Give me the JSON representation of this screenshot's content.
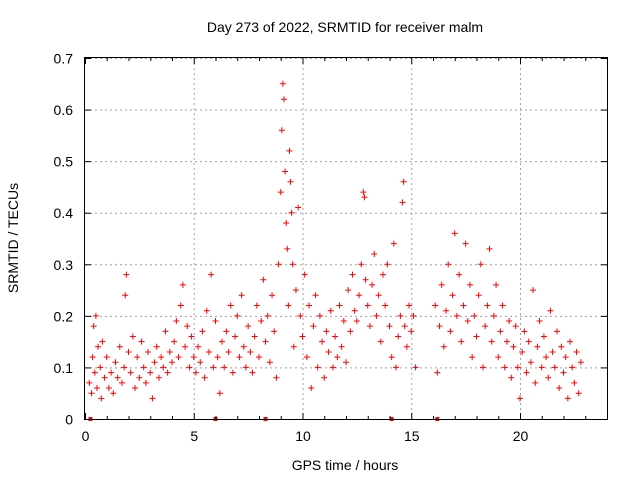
{
  "chart_data": {
    "type": "scatter",
    "title": "Day 273 of 2022, SRMTID for receiver malm",
    "xlabel": "GPS time / hours",
    "ylabel": "SRMTID / TECUs",
    "xlim": [
      0,
      24
    ],
    "ylim": [
      0,
      0.7
    ],
    "xticks": [
      0,
      5,
      10,
      15,
      20
    ],
    "xtick_labels": [
      "0",
      "5",
      "10",
      "15",
      "20"
    ],
    "yticks": [
      0,
      0.1,
      0.2,
      0.3,
      0.4,
      0.5,
      0.6,
      0.7
    ],
    "ytick_labels": [
      "0",
      "0.1",
      "0.2",
      "0.3",
      "0.4",
      "0.5",
      "0.6",
      "0.7"
    ],
    "grid": true,
    "marker": "+",
    "color": "#ff0000",
    "series": [
      {
        "name": "SRMTID",
        "points": [
          [
            0.2,
            0.07
          ],
          [
            0.3,
            0.05
          ],
          [
            0.35,
            0.12
          ],
          [
            0.4,
            0.18
          ],
          [
            0.45,
            0.09
          ],
          [
            0.5,
            0.2
          ],
          [
            0.55,
            0.06
          ],
          [
            0.6,
            0.14
          ],
          [
            0.7,
            0.1
          ],
          [
            0.75,
            0.04
          ],
          [
            0.8,
            0.15
          ],
          [
            0.9,
            0.08
          ],
          [
            1.0,
            0.12
          ],
          [
            1.1,
            0.06
          ],
          [
            1.2,
            0.09
          ],
          [
            1.3,
            0.05
          ],
          [
            1.4,
            0.11
          ],
          [
            1.5,
            0.08
          ],
          [
            1.6,
            0.14
          ],
          [
            1.7,
            0.07
          ],
          [
            1.8,
            0.1
          ],
          [
            1.85,
            0.24
          ],
          [
            1.9,
            0.28
          ],
          [
            2.0,
            0.13
          ],
          [
            2.1,
            0.09
          ],
          [
            2.2,
            0.16
          ],
          [
            2.3,
            0.06
          ],
          [
            2.4,
            0.12
          ],
          [
            2.5,
            0.08
          ],
          [
            2.6,
            0.15
          ],
          [
            2.7,
            0.1
          ],
          [
            2.8,
            0.07
          ],
          [
            2.9,
            0.13
          ],
          [
            3.0,
            0.09
          ],
          [
            3.1,
            0.04
          ],
          [
            3.2,
            0.11
          ],
          [
            3.3,
            0.14
          ],
          [
            3.4,
            0.08
          ],
          [
            3.5,
            0.12
          ],
          [
            3.6,
            0.1
          ],
          [
            3.7,
            0.17
          ],
          [
            3.8,
            0.09
          ],
          [
            3.9,
            0.13
          ],
          [
            4.0,
            0.11
          ],
          [
            4.1,
            0.15
          ],
          [
            4.2,
            0.19
          ],
          [
            4.3,
            0.12
          ],
          [
            4.4,
            0.22
          ],
          [
            4.5,
            0.26
          ],
          [
            4.6,
            0.14
          ],
          [
            4.7,
            0.18
          ],
          [
            4.8,
            0.1
          ],
          [
            4.9,
            0.16
          ],
          [
            5.0,
            0.12
          ],
          [
            5.1,
            0.09
          ],
          [
            5.2,
            0.14
          ],
          [
            5.3,
            0.11
          ],
          [
            5.4,
            0.17
          ],
          [
            5.5,
            0.08
          ],
          [
            5.6,
            0.21
          ],
          [
            5.7,
            0.13
          ],
          [
            5.8,
            0.28
          ],
          [
            5.9,
            0.1
          ],
          [
            6.0,
            0.19
          ],
          [
            6.1,
            0.12
          ],
          [
            6.2,
            0.05
          ],
          [
            6.3,
            0.15
          ],
          [
            6.4,
            0.1
          ],
          [
            6.5,
            0.17
          ],
          [
            6.6,
            0.13
          ],
          [
            6.7,
            0.22
          ],
          [
            6.8,
            0.09
          ],
          [
            6.9,
            0.16
          ],
          [
            7.0,
            0.2
          ],
          [
            7.1,
            0.12
          ],
          [
            7.2,
            0.24
          ],
          [
            7.3,
            0.14
          ],
          [
            7.4,
            0.1
          ],
          [
            7.5,
            0.18
          ],
          [
            7.6,
            0.13
          ],
          [
            7.7,
            0.09
          ],
          [
            7.8,
            0.16
          ],
          [
            7.9,
            0.22
          ],
          [
            8.0,
            0.12
          ],
          [
            8.1,
            0.19
          ],
          [
            8.2,
            0.27
          ],
          [
            8.3,
            0.15
          ],
          [
            8.4,
            0.2
          ],
          [
            8.5,
            0.11
          ],
          [
            8.6,
            0.24
          ],
          [
            8.7,
            0.17
          ],
          [
            8.8,
            0.08
          ],
          [
            8.9,
            0.3
          ],
          [
            9.0,
            0.44
          ],
          [
            9.05,
            0.56
          ],
          [
            9.1,
            0.65
          ],
          [
            9.15,
            0.62
          ],
          [
            9.2,
            0.48
          ],
          [
            9.25,
            0.38
          ],
          [
            9.3,
            0.33
          ],
          [
            9.35,
            0.22
          ],
          [
            9.4,
            0.52
          ],
          [
            9.45,
            0.46
          ],
          [
            9.5,
            0.4
          ],
          [
            9.55,
            0.3
          ],
          [
            9.6,
            0.14
          ],
          [
            9.7,
            0.25
          ],
          [
            9.8,
            0.41
          ],
          [
            9.9,
            0.2
          ],
          [
            10.0,
            0.16
          ],
          [
            10.1,
            0.28
          ],
          [
            10.2,
            0.12
          ],
          [
            10.3,
            0.22
          ],
          [
            10.4,
            0.06
          ],
          [
            10.5,
            0.18
          ],
          [
            10.6,
            0.24
          ],
          [
            10.7,
            0.1
          ],
          [
            10.8,
            0.2
          ],
          [
            10.9,
            0.15
          ],
          [
            11.0,
            0.08
          ],
          [
            11.1,
            0.17
          ],
          [
            11.2,
            0.13
          ],
          [
            11.3,
            0.21
          ],
          [
            11.4,
            0.1
          ],
          [
            11.5,
            0.16
          ],
          [
            11.6,
            0.12
          ],
          [
            11.7,
            0.22
          ],
          [
            11.8,
            0.14
          ],
          [
            11.9,
            0.19
          ],
          [
            12.0,
            0.11
          ],
          [
            12.1,
            0.25
          ],
          [
            12.2,
            0.17
          ],
          [
            12.3,
            0.28
          ],
          [
            12.4,
            0.21
          ],
          [
            12.5,
            0.19
          ],
          [
            12.6,
            0.24
          ],
          [
            12.7,
            0.3
          ],
          [
            12.8,
            0.44
          ],
          [
            12.85,
            0.43
          ],
          [
            12.9,
            0.27
          ],
          [
            13.0,
            0.22
          ],
          [
            13.1,
            0.18
          ],
          [
            13.2,
            0.26
          ],
          [
            13.3,
            0.32
          ],
          [
            13.4,
            0.2
          ],
          [
            13.5,
            0.24
          ],
          [
            13.6,
            0.15
          ],
          [
            13.7,
            0.28
          ],
          [
            13.8,
            0.22
          ],
          [
            13.9,
            0.3
          ],
          [
            14.0,
            0.18
          ],
          [
            14.1,
            0.12
          ],
          [
            14.2,
            0.34
          ],
          [
            14.3,
            0.1
          ],
          [
            14.4,
            0.16
          ],
          [
            14.5,
            0.2
          ],
          [
            14.6,
            0.42
          ],
          [
            14.65,
            0.46
          ],
          [
            14.7,
            0.18
          ],
          [
            14.8,
            0.14
          ],
          [
            14.9,
            0.22
          ],
          [
            15.0,
            0.17
          ],
          [
            15.1,
            0.2
          ],
          [
            15.2,
            0.1
          ],
          [
            16.1,
            0.22
          ],
          [
            16.2,
            0.09
          ],
          [
            16.3,
            0.18
          ],
          [
            16.4,
            0.26
          ],
          [
            16.5,
            0.14
          ],
          [
            16.6,
            0.21
          ],
          [
            16.7,
            0.3
          ],
          [
            16.8,
            0.17
          ],
          [
            16.9,
            0.24
          ],
          [
            17.0,
            0.36
          ],
          [
            17.1,
            0.2
          ],
          [
            17.2,
            0.28
          ],
          [
            17.3,
            0.15
          ],
          [
            17.4,
            0.22
          ],
          [
            17.5,
            0.34
          ],
          [
            17.6,
            0.19
          ],
          [
            17.7,
            0.26
          ],
          [
            17.8,
            0.12
          ],
          [
            17.9,
            0.2
          ],
          [
            18.0,
            0.16
          ],
          [
            18.1,
            0.24
          ],
          [
            18.2,
            0.3
          ],
          [
            18.3,
            0.1
          ],
          [
            18.4,
            0.18
          ],
          [
            18.5,
            0.22
          ],
          [
            18.6,
            0.33
          ],
          [
            18.7,
            0.15
          ],
          [
            18.8,
            0.2
          ],
          [
            18.9,
            0.26
          ],
          [
            19.0,
            0.12
          ],
          [
            19.1,
            0.17
          ],
          [
            19.2,
            0.22
          ],
          [
            19.3,
            0.1
          ],
          [
            19.4,
            0.15
          ],
          [
            19.5,
            0.19
          ],
          [
            19.6,
            0.08
          ],
          [
            19.7,
            0.14
          ],
          [
            19.8,
            0.18
          ],
          [
            19.9,
            0.1
          ],
          [
            20.0,
            0.04
          ],
          [
            20.1,
            0.13
          ],
          [
            20.2,
            0.17
          ],
          [
            20.3,
            0.09
          ],
          [
            20.4,
            0.15
          ],
          [
            20.5,
            0.11
          ],
          [
            20.6,
            0.25
          ],
          [
            20.7,
            0.07
          ],
          [
            20.8,
            0.14
          ],
          [
            20.9,
            0.19
          ],
          [
            21.0,
            0.1
          ],
          [
            21.1,
            0.16
          ],
          [
            21.2,
            0.12
          ],
          [
            21.3,
            0.08
          ],
          [
            21.4,
            0.21
          ],
          [
            21.5,
            0.13
          ],
          [
            21.6,
            0.1
          ],
          [
            21.7,
            0.17
          ],
          [
            21.8,
            0.06
          ],
          [
            21.9,
            0.14
          ],
          [
            22.0,
            0.09
          ],
          [
            22.1,
            0.12
          ],
          [
            22.2,
            0.04
          ],
          [
            22.3,
            0.15
          ],
          [
            22.4,
            0.1
          ],
          [
            22.5,
            0.07
          ],
          [
            22.6,
            0.13
          ],
          [
            22.7,
            0.05
          ],
          [
            22.8,
            0.11
          ]
        ]
      }
    ],
    "gap_markers_x": [
      0.25,
      6.0,
      8.3,
      14.1,
      16.2
    ]
  }
}
